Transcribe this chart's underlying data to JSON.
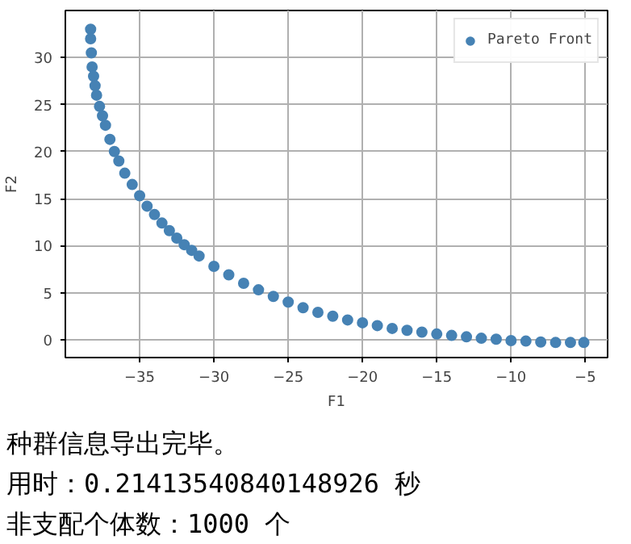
{
  "chart_data": {
    "type": "scatter",
    "xlabel": "F1",
    "ylabel": "F2",
    "xlim": [
      -40,
      -3.5
    ],
    "ylim": [
      -1.9,
      35
    ],
    "xticks": [
      -35,
      -30,
      -25,
      -20,
      -15,
      -10,
      -5
    ],
    "yticks": [
      0,
      5,
      10,
      15,
      20,
      25,
      30
    ],
    "grid": true,
    "legend": "top right",
    "marker": "circle",
    "series": [
      {
        "name": "Pareto Front",
        "color": "#4682b4",
        "x": [
          -38.3,
          -38.3,
          -38.25,
          -38.2,
          -38.1,
          -38.0,
          -37.9,
          -37.7,
          -37.5,
          -37.3,
          -37.0,
          -36.7,
          -36.4,
          -36.0,
          -35.5,
          -35.0,
          -34.5,
          -34.0,
          -33.5,
          -33.0,
          -32.5,
          -32.0,
          -31.5,
          -31.0,
          -30.0,
          -29.0,
          -28.0,
          -27.0,
          -26.0,
          -25.0,
          -24.0,
          -23.0,
          -22.0,
          -21.0,
          -20.0,
          -19.0,
          -18.0,
          -17.0,
          -16.0,
          -15.0,
          -14.0,
          -13.0,
          -12.0,
          -11.0,
          -10.0,
          -9.0,
          -8.0,
          -7.0,
          -6.0,
          -5.1
        ],
        "values": [
          33.0,
          32.0,
          30.5,
          29.0,
          28.0,
          27.0,
          26.0,
          24.8,
          23.8,
          22.8,
          21.3,
          20.0,
          19.0,
          17.7,
          16.5,
          15.3,
          14.2,
          13.3,
          12.4,
          11.6,
          10.8,
          10.1,
          9.5,
          8.9,
          7.8,
          6.9,
          6.0,
          5.3,
          4.6,
          4.0,
          3.4,
          2.9,
          2.5,
          2.1,
          1.8,
          1.5,
          1.2,
          1.0,
          0.8,
          0.6,
          0.45,
          0.3,
          0.15,
          0.05,
          -0.1,
          -0.15,
          -0.25,
          -0.3,
          -0.3,
          -0.3
        ]
      }
    ],
    "annotations": [
      "种群信息导出完毕。",
      "用时：0.21413540840148926 秒",
      "非支配个体数：1000 个"
    ]
  }
}
